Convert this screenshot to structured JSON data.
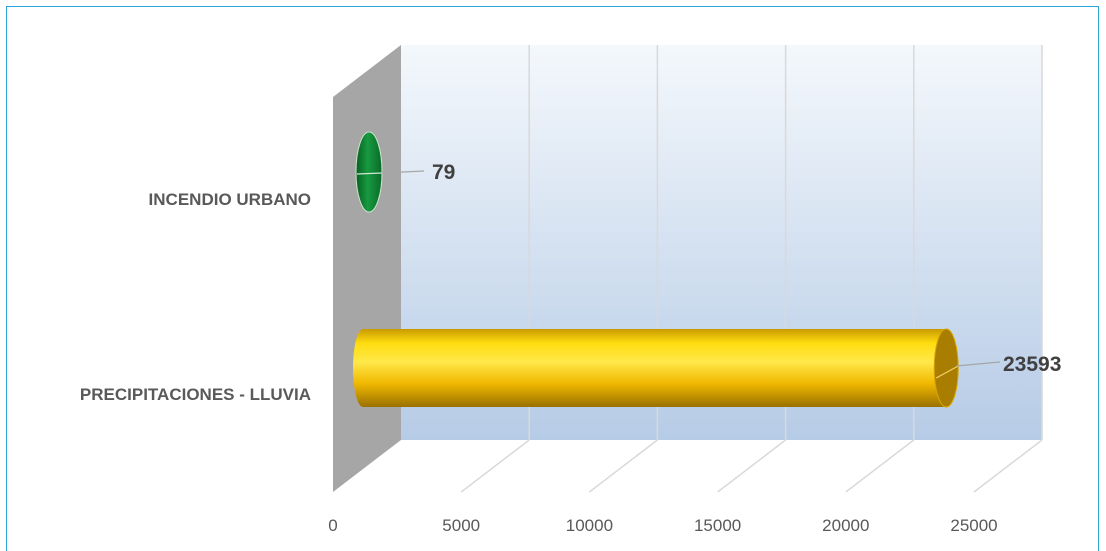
{
  "chart_data": {
    "type": "bar",
    "orientation": "horizontal",
    "style": "3d-cylinder",
    "categories": [
      "INCENDIO URBANO",
      "PRECIPITACIONES - LLUVIA"
    ],
    "values": [
      79,
      23593
    ],
    "data_labels": [
      "79",
      "23593"
    ],
    "colors": [
      "#0e7a32",
      "#f2c200"
    ],
    "xlim": [
      0,
      25000
    ],
    "xticks": [
      0,
      5000,
      10000,
      15000,
      20000,
      25000
    ],
    "xtick_labels": [
      "0",
      "5000",
      "10000",
      "15000",
      "20000",
      "25000"
    ],
    "grid": true,
    "legend": "none"
  },
  "colors": {
    "frame_border": "#2ea7d8",
    "back_wall_top": "#f4f8fc",
    "back_wall_bottom": "#b6cbe6",
    "side_wall": "#a6a6a6",
    "gridline": "#d9d9d9",
    "text": "#595959"
  }
}
